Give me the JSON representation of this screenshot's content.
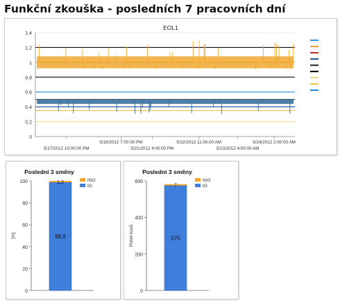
{
  "page": {
    "title": "Funkční zkouška - posledních 7 pracovních dní"
  },
  "colors": {
    "io": "#3f7fdc",
    "nio": "#f5a623",
    "io_dark": "#2a4c7a",
    "eol_upper_noise": "#f0a830",
    "eol_lower_noise": "#2f6a9e",
    "grid": "#d9d9d9"
  },
  "chart_data": [
    {
      "type": "line",
      "title": "EOL1",
      "xlabel": "",
      "ylabel": "",
      "ylim": [
        0,
        1.4
      ],
      "yticks": [
        "0",
        "0.2",
        "0.4",
        "0.6",
        "0.8",
        "1",
        "1.2",
        "1.4"
      ],
      "xticks_top": [
        "5/18/2012 7:00:00 PM",
        "5/22/2012 11:00:00 AM",
        "5/24/2012 2:00:00 AM"
      ],
      "xticks_bottom": [
        "5/17/2012 10:00:00 PM",
        "5/21/2012 4:00:00 PM",
        "5/23/2012 4:00:00 AM"
      ],
      "reference_lines": [
        {
          "y": 1.2,
          "color": "#111111"
        },
        {
          "y": 1.0,
          "color": "#e8a33a"
        },
        {
          "y": 0.8,
          "color": "#222222"
        },
        {
          "y": 0.6,
          "color": "#3a9ad9"
        },
        {
          "y": 0.5,
          "color": "#333333"
        },
        {
          "y": 0.4,
          "color": "#2e5f9a"
        },
        {
          "y": 0.35,
          "color": "#f2c14e"
        },
        {
          "y": 0.2,
          "color": "#f5d98b"
        }
      ],
      "series": [
        {
          "color": "#f0a830",
          "baseline": 1.0,
          "band": [
            0.92,
            1.08
          ],
          "min": 0.9,
          "max": 1.3
        },
        {
          "color": "#2f6a9e",
          "baseline": 0.47,
          "band": [
            0.44,
            0.5
          ],
          "min": 0.3,
          "max": 0.5
        }
      ],
      "legend": {
        "placement": "right",
        "swatches": [
          "#3a9ad9",
          "#e8a33a",
          "#c0392b",
          "#2e5f9a",
          "#333333",
          "#111111",
          "#f5d98b",
          "#f2c14e",
          "#2a8fd0"
        ]
      },
      "grid": true
    },
    {
      "type": "bar",
      "title": "Poslední 3 směny",
      "ylabel": "[%]",
      "ylim": [
        0,
        100
      ],
      "yticks": [
        "0",
        "20",
        "40",
        "60",
        "80",
        "100"
      ],
      "categories": [
        ""
      ],
      "stacked": true,
      "series": [
        {
          "name": "IO",
          "values": [
            98.8
          ],
          "label": "98.8"
        },
        {
          "name": "NIO",
          "values": [
            1.2
          ],
          "label": "1.2"
        }
      ],
      "legend": [
        "NIO",
        "IO"
      ],
      "legend_placement": "top-right"
    },
    {
      "type": "bar",
      "title": "Poslední 3 směny",
      "ylabel": "Počet kusů",
      "ylim": [
        0,
        600
      ],
      "yticks": [
        "0",
        "200",
        "400",
        "600"
      ],
      "categories": [
        ""
      ],
      "stacked": true,
      "series": [
        {
          "name": "IO",
          "values": [
            575
          ],
          "label": "575"
        },
        {
          "name": "NIO",
          "values": [
            7
          ],
          "label": "7"
        }
      ],
      "legend": [
        "NIO",
        "IO"
      ],
      "legend_placement": "top-right"
    }
  ]
}
